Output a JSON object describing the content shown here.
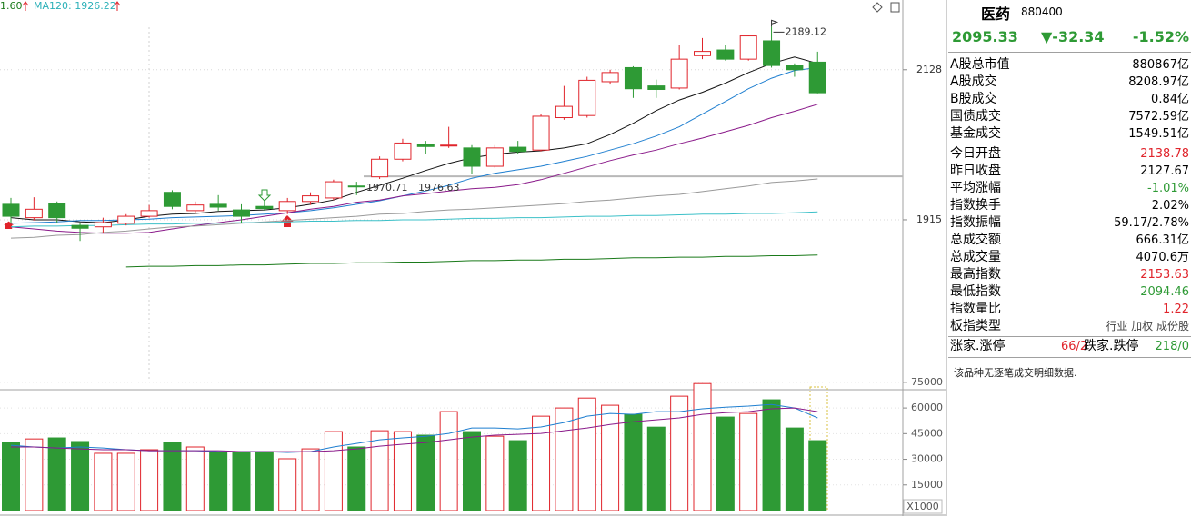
{
  "chart_data": [
    {
      "type": "candlestick",
      "legend_texts": [
        "1.60",
        "MA120: 1926.22"
      ],
      "up_color": "#e0242b",
      "down_color": "#2e9a35",
      "ylim": [
        1688,
        2227
      ],
      "yticks": [
        1915,
        2128
      ],
      "grid": true,
      "open": [
        1937,
        1918,
        1938,
        1907,
        1905,
        1910,
        1920,
        1954,
        1928,
        1937,
        1929,
        1934,
        1928,
        1941,
        1946,
        1963,
        1976,
        2001,
        2022,
        2020,
        2017,
        1991,
        2018,
        2014,
        2060,
        2063,
        2111,
        2131,
        2105,
        2102,
        2148,
        2156,
        2143,
        2169,
        2134,
        2138.78
      ],
      "high": [
        1946,
        1947,
        1941,
        1911,
        1918,
        1923,
        1936,
        1957,
        1941,
        1950,
        1937,
        1943,
        1946,
        1954,
        1972,
        1969,
        2005,
        2030,
        2027,
        2047,
        2021,
        2021,
        2027,
        2065,
        2105,
        2118,
        2128,
        2133,
        2114,
        2163,
        2173,
        2163,
        2178,
        2189.12,
        2137,
        2153.63
      ],
      "low": [
        1911,
        1914,
        1911,
        1885,
        1896,
        1907,
        1918,
        1930,
        1925,
        1928,
        1911,
        1928,
        1923,
        1936,
        1943,
        1950,
        1973,
        1998,
        2008,
        2017,
        1980,
        1989,
        2008,
        2012,
        2057,
        2060,
        2107,
        2088,
        2088,
        2100,
        2143,
        2141,
        2141,
        2131,
        2118,
        2094.46
      ],
      "close": [
        1920,
        1930,
        1918,
        1903,
        1911,
        1920,
        1928,
        1934,
        1936,
        1933,
        1920,
        1931,
        1941,
        1949,
        1969,
        1962,
        2001,
        2024,
        2019,
        2021,
        1991,
        2017,
        2012,
        2062,
        2076,
        2113,
        2124,
        2101,
        2100,
        2143,
        2154,
        2143,
        2176,
        2134,
        2128,
        2095.33
      ],
      "annotations": [
        1970.71,
        1976.63,
        2189.12
      ],
      "lines": [
        {
          "color": "#111111",
          "values": [
            1918,
            1915,
            1915,
            1912,
            1911,
            1915,
            1920,
            1923,
            1924,
            1927,
            1928,
            1929,
            1932,
            1937,
            1943,
            1954,
            1964,
            1974,
            1985,
            1995,
            2003,
            2008,
            2011,
            2013,
            2017,
            2023,
            2036,
            2052,
            2070,
            2085,
            2096,
            2109,
            2124,
            2137,
            2146,
            2137
          ]
        },
        {
          "color": "#1f7fd0",
          "values": [
            1910,
            1911,
            1912,
            1914,
            1914,
            1915,
            1916,
            1918,
            1919,
            1920,
            1921,
            1923,
            1925,
            1928,
            1932,
            1937,
            1942,
            1949,
            1956,
            1964,
            1974,
            1981,
            1986,
            1991,
            1998,
            2005,
            2014,
            2023,
            2034,
            2047,
            2065,
            2083,
            2101,
            2116,
            2127,
            2131
          ]
        },
        {
          "color": "#8a1a8a",
          "values": [
            1905,
            1902,
            1899,
            1897,
            1896,
            1896,
            1897,
            1902,
            1907,
            1911,
            1915,
            1920,
            1925,
            1930,
            1934,
            1940,
            1943,
            1949,
            1952,
            1956,
            1959,
            1961,
            1965,
            1972,
            1981,
            1990,
            1999,
            2007,
            2014,
            2023,
            2031,
            2040,
            2049,
            2060,
            2069,
            2079
          ]
        },
        {
          "color": "#9a9a9a",
          "values": [
            1889,
            1890,
            1893,
            1894,
            1897,
            1899,
            1902,
            1905,
            1906,
            1908,
            1910,
            1912,
            1914,
            1916,
            1918,
            1920,
            1923,
            1924,
            1927,
            1929,
            1930,
            1932,
            1934,
            1936,
            1938,
            1941,
            1943,
            1946,
            1949,
            1951,
            1955,
            1959,
            1963,
            1968,
            1970,
            1973
          ]
        },
        {
          "color": "#3cc0c8",
          "values": [
            1905,
            1906,
            1906,
            1907,
            1907,
            1908,
            1909,
            1909,
            1910,
            1910,
            1911,
            1911,
            1912,
            1913,
            1913,
            1914,
            1914,
            1915,
            1915,
            1916,
            1917,
            1917,
            1918,
            1918,
            1919,
            1920,
            1920,
            1921,
            1921,
            1922,
            1923,
            1923,
            1924,
            1924,
            1925,
            1926.22
          ]
        },
        {
          "color": "#1a7a1a",
          "values": [
            null,
            null,
            null,
            null,
            null,
            1848,
            1849,
            1849,
            1850,
            1850,
            1851,
            1851,
            1852,
            1853,
            1853,
            1854,
            1854,
            1855,
            1855,
            1856,
            1857,
            1857,
            1858,
            1858,
            1859,
            1859,
            1860,
            1861,
            1861,
            1862,
            1862,
            1863,
            1863,
            1864,
            1864,
            1865
          ]
        }
      ]
    },
    {
      "type": "bar",
      "unit_label": "X1000",
      "ylim": [
        0,
        76000
      ],
      "yticks": [
        15000,
        30000,
        45000,
        60000,
        75000
      ],
      "values": [
        39800,
        41900,
        42500,
        40400,
        33500,
        33500,
        35600,
        39800,
        37200,
        34000,
        34500,
        34500,
        30300,
        36100,
        46200,
        37200,
        46700,
        46200,
        44100,
        57900,
        46200,
        43500,
        40900,
        55200,
        60000,
        65800,
        61600,
        56300,
        48800,
        66900,
        74300,
        54700,
        56800,
        64800,
        48300,
        40900
      ],
      "lines": [
        {
          "color": "#1f7fd0",
          "values": [
            38200,
            37200,
            36600,
            37200,
            36600,
            35600,
            35000,
            35000,
            35000,
            34500,
            34500,
            34500,
            34000,
            34500,
            37200,
            39300,
            41400,
            42500,
            43500,
            45100,
            48300,
            48300,
            47800,
            48900,
            51500,
            55200,
            56800,
            56300,
            57900,
            57900,
            59500,
            60500,
            61100,
            62100,
            60000,
            54200
          ]
        },
        {
          "color": "#8a1a8a",
          "values": [
            37200,
            37200,
            36600,
            36100,
            35600,
            35600,
            35000,
            35000,
            35000,
            35000,
            34500,
            34500,
            34500,
            34500,
            35000,
            36100,
            37700,
            38800,
            39800,
            41400,
            43000,
            44100,
            44600,
            45100,
            46700,
            48300,
            50400,
            52000,
            53100,
            54200,
            56300,
            57300,
            57900,
            59500,
            60000,
            57900
          ]
        }
      ]
    }
  ],
  "panel": {
    "name": "医药",
    "code": "880400",
    "price": "2095.33",
    "change": "▼-32.34",
    "change_pct": "-1.52%",
    "groups": [
      [
        {
          "label": "A股总市值",
          "value": "880867亿"
        }
      ],
      [
        {
          "label": "A股成交",
          "value": "8208.97亿"
        },
        {
          "label": "B股成交",
          "value": "0.84亿"
        },
        {
          "label": "国债成交",
          "value": "7572.59亿"
        },
        {
          "label": "基金成交",
          "value": "1549.51亿"
        }
      ],
      [
        {
          "label": "今日开盘",
          "value": "2138.78",
          "color": "#e0242b"
        },
        {
          "label": "昨日收盘",
          "value": "2127.67"
        },
        {
          "label": "平均涨幅",
          "value": "-1.01%",
          "color": "#2e9a35"
        },
        {
          "label": "指数换手",
          "value": "2.02%"
        },
        {
          "label": "指数振幅",
          "value": "59.17/2.78%"
        },
        {
          "label": "总成交额",
          "value": "666.31亿"
        },
        {
          "label": "总成交量",
          "value": "4070.6万"
        },
        {
          "label": "最高指数",
          "value": "2153.63",
          "color": "#e0242b"
        },
        {
          "label": "最低指数",
          "value": "2094.46",
          "color": "#2e9a35"
        },
        {
          "label": "指数量比",
          "value": "1.22",
          "color": "#e0242b"
        },
        {
          "label": "板指类型",
          "value": "行业 加权 成份股"
        }
      ]
    ],
    "breadth": {
      "up_label": "涨家.涨停",
      "up_value": "66/2",
      "down_label": "跌家.跌停",
      "down_value": "218/0"
    },
    "message": "该品种无逐笔成交明细数据."
  }
}
